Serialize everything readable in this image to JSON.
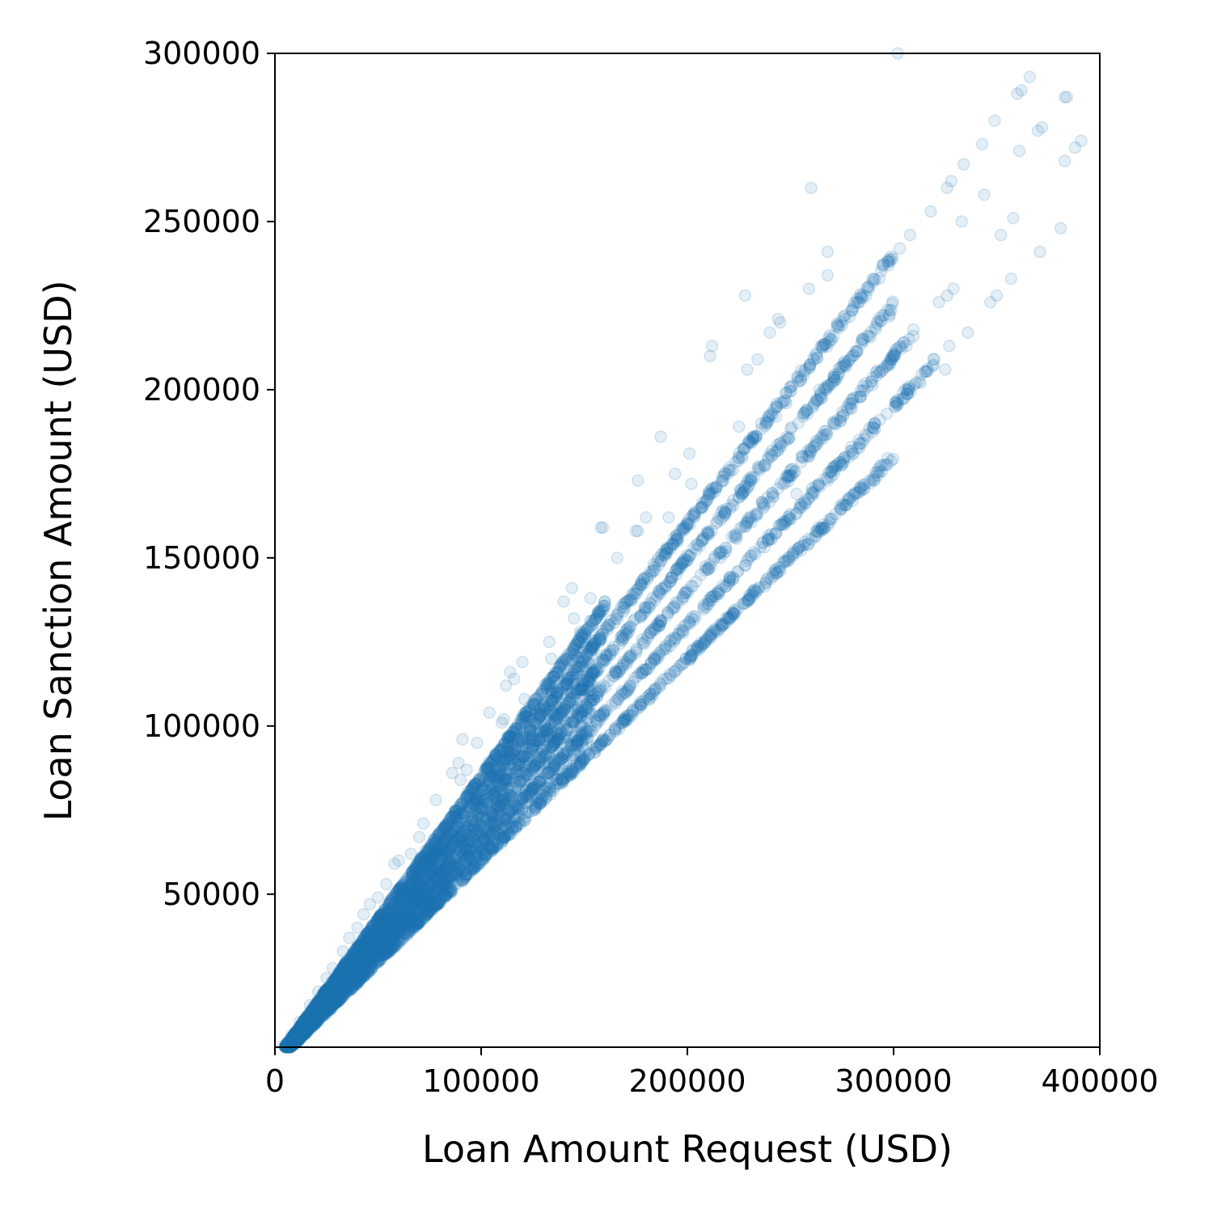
{
  "chart_data": {
    "type": "scatter",
    "xlabel": "Loan Amount Request (USD)",
    "ylabel": "Loan Sanction Amount (USD)",
    "xlim": [
      0,
      400000
    ],
    "ylim": [
      4500,
      300000
    ],
    "xticks": [
      0,
      100000,
      200000,
      300000,
      400000
    ],
    "yticks": [
      50000,
      100000,
      150000,
      200000,
      250000,
      300000
    ],
    "xtick_labels": [
      "0",
      "100000",
      "200000",
      "300000",
      "400000"
    ],
    "ytick_labels": [
      "50000",
      "100000",
      "150000",
      "200000",
      "250000",
      "300000"
    ],
    "grid": false,
    "legend": "none",
    "marker": {
      "shape": "circle",
      "color": "#1f77b4",
      "alpha": 0.12
    },
    "bands": [
      {
        "slope": 0.8,
        "x_range": [
          5000,
          300000
        ]
      },
      {
        "slope": 0.75,
        "x_range": [
          5000,
          300000
        ]
      },
      {
        "slope": 0.7,
        "x_range": [
          5000,
          310000
        ]
      },
      {
        "slope": 0.65,
        "x_range": [
          5000,
          320000
        ]
      },
      {
        "slope": 0.6,
        "x_range": [
          5000,
          300000
        ]
      },
      {
        "slope": 0.85,
        "x_range": [
          5000,
          160000
        ]
      }
    ],
    "points": [
      [
        260000,
        260000
      ],
      [
        302000,
        300000
      ],
      [
        366000,
        293000
      ],
      [
        360000,
        288000
      ],
      [
        362000,
        289000
      ],
      [
        384000,
        287000
      ],
      [
        383000,
        287000
      ],
      [
        349000,
        280000
      ],
      [
        372000,
        278000
      ],
      [
        370000,
        277000
      ],
      [
        343000,
        273000
      ],
      [
        391000,
        274000
      ],
      [
        388000,
        272000
      ],
      [
        361000,
        271000
      ],
      [
        383000,
        268000
      ],
      [
        334000,
        267000
      ],
      [
        328000,
        262000
      ],
      [
        326000,
        260000
      ],
      [
        344000,
        258000
      ],
      [
        318000,
        253000
      ],
      [
        358000,
        251000
      ],
      [
        333000,
        250000
      ],
      [
        352000,
        246000
      ],
      [
        381000,
        248000
      ],
      [
        308000,
        246000
      ],
      [
        303000,
        242000
      ],
      [
        268000,
        241000
      ],
      [
        371000,
        241000
      ],
      [
        298000,
        238000
      ],
      [
        290000,
        232000
      ],
      [
        268000,
        234000
      ],
      [
        259000,
        230000
      ],
      [
        357000,
        233000
      ],
      [
        326000,
        228000
      ],
      [
        329000,
        230000
      ],
      [
        282000,
        226000
      ],
      [
        228000,
        228000
      ],
      [
        322000,
        226000
      ],
      [
        347000,
        226000
      ],
      [
        350000,
        228000
      ],
      [
        245000,
        220000
      ],
      [
        244000,
        221000
      ],
      [
        240000,
        217000
      ],
      [
        305000,
        214000
      ],
      [
        300000,
        210000
      ],
      [
        336000,
        217000
      ],
      [
        212000,
        213000
      ],
      [
        211000,
        210000
      ],
      [
        229000,
        206000
      ],
      [
        234000,
        209000
      ],
      [
        319000,
        207000
      ],
      [
        327000,
        213000
      ],
      [
        313000,
        202000
      ],
      [
        325000,
        206000
      ],
      [
        280000,
        196000
      ],
      [
        302000,
        196000
      ],
      [
        264000,
        200000
      ],
      [
        248000,
        196000
      ],
      [
        291000,
        190000
      ],
      [
        225000,
        189000
      ],
      [
        243000,
        192000
      ],
      [
        283000,
        185000
      ],
      [
        187000,
        186000
      ],
      [
        201000,
        181000
      ],
      [
        268000,
        173000
      ],
      [
        194000,
        175000
      ],
      [
        176000,
        173000
      ],
      [
        202000,
        172000
      ],
      [
        253000,
        169000
      ],
      [
        234000,
        163000
      ],
      [
        180000,
        162000
      ],
      [
        191000,
        162000
      ],
      [
        246000,
        160000
      ],
      [
        158000,
        159000
      ],
      [
        159000,
        159000
      ],
      [
        176000,
        158000
      ],
      [
        175000,
        158000
      ],
      [
        166000,
        150000
      ],
      [
        144000,
        141000
      ],
      [
        153000,
        138000
      ],
      [
        140000,
        137000
      ],
      [
        160000,
        137000
      ],
      [
        157000,
        134000
      ],
      [
        145000,
        132000
      ],
      [
        133000,
        125000
      ],
      [
        148000,
        128000
      ],
      [
        120000,
        119000
      ],
      [
        114000,
        116000
      ],
      [
        116000,
        114000
      ],
      [
        134000,
        120000
      ],
      [
        112000,
        112000
      ],
      [
        121000,
        108000
      ],
      [
        111000,
        102000
      ],
      [
        110000,
        101000
      ],
      [
        104000,
        104000
      ],
      [
        98000,
        95000
      ],
      [
        91000,
        96000
      ],
      [
        89000,
        89000
      ],
      [
        86000,
        86000
      ],
      [
        93000,
        87000
      ],
      [
        90000,
        84000
      ],
      [
        78000,
        78000
      ],
      [
        72000,
        71000
      ],
      [
        70000,
        67000
      ],
      [
        60000,
        60000
      ],
      [
        58000,
        59000
      ],
      [
        66000,
        62000
      ],
      [
        54000,
        53000
      ],
      [
        50000,
        49000
      ],
      [
        46000,
        47000
      ],
      [
        43000,
        44000
      ],
      [
        40000,
        40000
      ],
      [
        36000,
        37000
      ],
      [
        33000,
        33000
      ],
      [
        28000,
        28000
      ],
      [
        25000,
        25000
      ],
      [
        21000,
        21000
      ],
      [
        17000,
        17000
      ],
      [
        12000,
        12000
      ],
      [
        8000,
        8000
      ],
      [
        6000,
        6000
      ],
      [
        4000,
        5000
      ]
    ]
  }
}
